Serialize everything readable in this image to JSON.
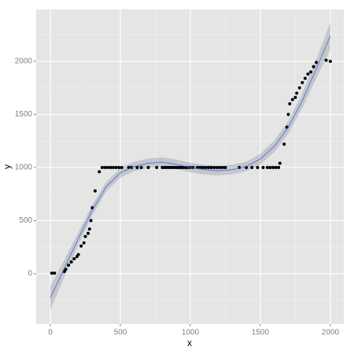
{
  "chart_data": {
    "type": "scatter",
    "xlabel": "x",
    "ylabel": "y",
    "xlim": [
      -101,
      2096
    ],
    "ylim": [
      -474,
      2489
    ],
    "xticks": [
      0,
      500,
      1000,
      1500,
      2000
    ],
    "yticks": [
      0,
      500,
      1000,
      1500,
      2000
    ],
    "x_minor_breaks": [
      250,
      750,
      1250,
      1750
    ],
    "y_minor_breaks": [
      -250,
      250,
      750,
      1250,
      1750,
      2250
    ],
    "grid": true,
    "points": {
      "color": "#000000",
      "x": [
        10,
        30,
        100,
        110,
        130,
        150,
        170,
        190,
        200,
        220,
        240,
        250,
        270,
        280,
        290,
        300,
        320,
        350,
        370,
        390,
        410,
        430,
        450,
        470,
        490,
        510,
        560,
        580,
        620,
        650,
        700,
        760,
        800,
        815,
        830,
        845,
        860,
        875,
        890,
        905,
        920,
        935,
        950,
        965,
        980,
        1000,
        1020,
        1050,
        1070,
        1090,
        1110,
        1130,
        1150,
        1170,
        1190,
        1210,
        1230,
        1250,
        1350,
        1400,
        1440,
        1480,
        1520,
        1550,
        1570,
        1590,
        1610,
        1630,
        1640,
        1670,
        1690,
        1700,
        1710,
        1730,
        1750,
        1760,
        1780,
        1800,
        1820,
        1840,
        1860,
        1880,
        1900,
        1970,
        2000
      ],
      "y": [
        5,
        5,
        20,
        40,
        80,
        110,
        140,
        160,
        180,
        260,
        290,
        350,
        380,
        420,
        500,
        620,
        780,
        960,
        1000,
        1000,
        1000,
        1000,
        1000,
        1000,
        1000,
        1000,
        1000,
        1000,
        1000,
        1000,
        1000,
        1000,
        1000,
        1000,
        1000,
        1000,
        1000,
        1000,
        1000,
        1000,
        1000,
        1000,
        1000,
        1000,
        1000,
        1000,
        1000,
        1000,
        1000,
        1000,
        1000,
        1000,
        1000,
        1000,
        1000,
        1000,
        1000,
        1000,
        1000,
        1000,
        1000,
        1000,
        1000,
        1000,
        1000,
        1000,
        1000,
        1000,
        1040,
        1220,
        1380,
        1500,
        1600,
        1640,
        1660,
        1700,
        1750,
        1800,
        1840,
        1880,
        1900,
        1950,
        1990,
        2010,
        2000
      ]
    },
    "smooth": {
      "color": "#3366ff",
      "band_color": "#999999",
      "x": [
        0,
        100,
        200,
        300,
        400,
        500,
        600,
        700,
        800,
        900,
        1000,
        1100,
        1200,
        1300,
        1400,
        1500,
        1600,
        1700,
        1800,
        1900,
        2000
      ],
      "y": [
        -230,
        50,
        330,
        600,
        820,
        950,
        1010,
        1040,
        1050,
        1030,
        1000,
        980,
        970,
        980,
        1010,
        1080,
        1200,
        1380,
        1630,
        1930,
        2240
      ],
      "lower": [
        -340,
        -30,
        270,
        550,
        775,
        905,
        965,
        995,
        1005,
        985,
        955,
        935,
        925,
        935,
        965,
        1030,
        1145,
        1320,
        1560,
        1840,
        2110
      ],
      "upper": [
        -120,
        130,
        390,
        650,
        865,
        995,
        1055,
        1085,
        1095,
        1075,
        1045,
        1025,
        1015,
        1025,
        1055,
        1130,
        1255,
        1440,
        1700,
        2020,
        2370
      ]
    }
  }
}
